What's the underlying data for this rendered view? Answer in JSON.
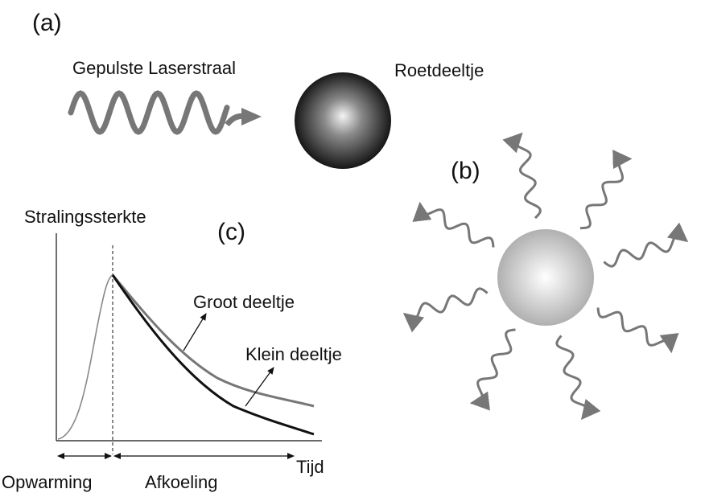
{
  "panel_a": {
    "label": "(a)",
    "laser_label": "Gepulste Laserstraal",
    "particle_label": "Roetdeeltje"
  },
  "panel_b": {
    "label": "(b)"
  },
  "panel_c": {
    "label": "(c)",
    "y_axis_label": "Stralingssterkte",
    "large_particle_label": "Groot deeltje",
    "small_particle_label": "Klein deeltje",
    "heating_label": "Opwarming",
    "cooling_label": "Afkoeling",
    "x_axis_label": "Tijd"
  }
}
